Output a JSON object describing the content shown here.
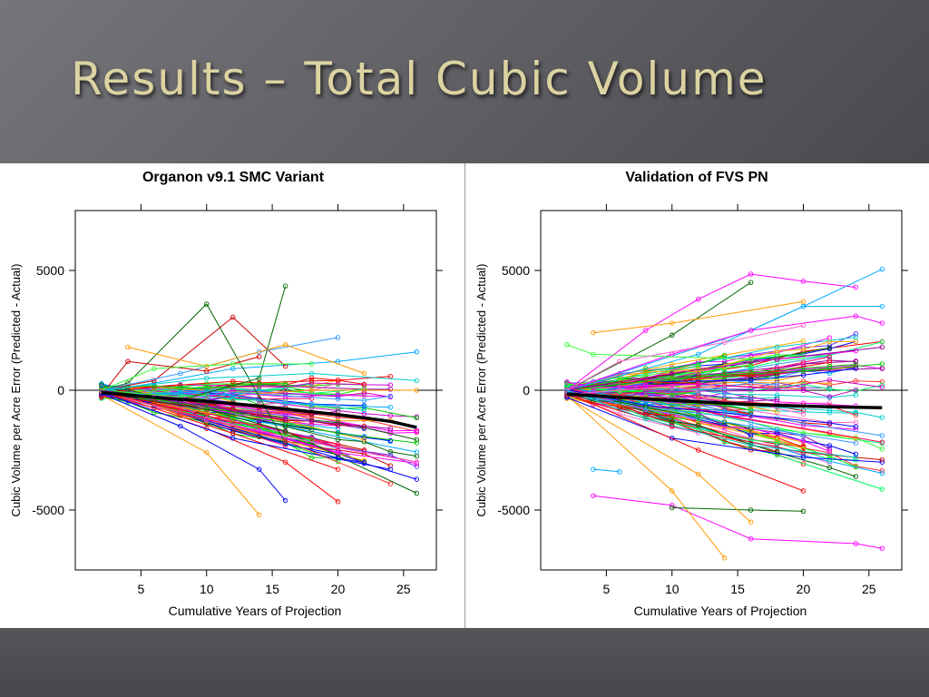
{
  "slide": {
    "title": "Results – Total Cubic Volume"
  },
  "colors": {
    "background": "#5e5e63",
    "title": "#dcd3a2",
    "mean_line": "#000000",
    "palette": [
      "#ff0000",
      "#00cc00",
      "#0000ff",
      "#ff00ff",
      "#00aaff",
      "#ff9900",
      "#006600",
      "#cc0000",
      "#33ff33",
      "#ff66cc",
      "#3399ff",
      "#990099",
      "#ffaa00",
      "#00cccc",
      "#ff3333",
      "#00ff66",
      "#6633ff",
      "#ff0066",
      "#00ff00",
      "#cc00cc"
    ]
  },
  "chart_data": [
    {
      "type": "line",
      "title": "Organon v9.1 SMC Variant",
      "xlabel": "Cumulative Years of Projection",
      "ylabel": "Cubic Volume per Acre Error (Predicted - Actual)",
      "xlim": [
        0,
        27.5
      ],
      "ylim": [
        -7500,
        7500
      ],
      "xticks": [
        5,
        10,
        15,
        20,
        25
      ],
      "yticks": [
        -5000,
        0,
        5000
      ],
      "reference_line_y": 0,
      "series_count": 130,
      "mean_trend": {
        "x": [
          2,
          4,
          6,
          8,
          10,
          12,
          14,
          16,
          18,
          20,
          22,
          24,
          26
        ],
        "y": [
          -100,
          -200,
          -300,
          -380,
          -460,
          -560,
          -660,
          -780,
          -900,
          -1020,
          -1150,
          -1300,
          -1550
        ]
      },
      "series": [
        {
          "color": "#ff00ff",
          "x": [
            2,
            8,
            14,
            20,
            26
          ],
          "y": [
            -100,
            -900,
            -1700,
            -2600,
            -3050
          ]
        },
        {
          "color": "#00aaff",
          "x": [
            2,
            6,
            12,
            20,
            26
          ],
          "y": [
            -50,
            300,
            900,
            1200,
            1600
          ]
        },
        {
          "color": "#006600",
          "x": [
            2,
            10,
            16,
            26
          ],
          "y": [
            -100,
            -800,
            -1700,
            -4300
          ]
        },
        {
          "color": "#ff0000",
          "x": [
            2,
            10,
            16,
            20
          ],
          "y": [
            -100,
            -1600,
            -3000,
            -4650
          ]
        },
        {
          "color": "#ff9900",
          "x": [
            2,
            10,
            14
          ],
          "y": [
            -200,
            -2600,
            -5200
          ]
        },
        {
          "color": "#006600",
          "x": [
            2,
            4,
            10,
            16
          ],
          "y": [
            0,
            300,
            3600,
            -2200
          ]
        },
        {
          "color": "#cc0000",
          "x": [
            2,
            6,
            12,
            16
          ],
          "y": [
            0,
            400,
            3050,
            1000
          ]
        },
        {
          "color": "#006600",
          "x": [
            2,
            8,
            14,
            16
          ],
          "y": [
            0,
            -400,
            500,
            4350
          ]
        },
        {
          "color": "#3399ff",
          "x": [
            2,
            8,
            14,
            20
          ],
          "y": [
            0,
            700,
            1600,
            2200
          ]
        },
        {
          "color": "#ff9900",
          "x": [
            4,
            10,
            16,
            22
          ],
          "y": [
            1800,
            1000,
            1900,
            700
          ]
        },
        {
          "color": "#cc0000",
          "x": [
            2,
            4,
            10,
            14
          ],
          "y": [
            -200,
            1200,
            800,
            1400
          ]
        },
        {
          "color": "#0000ff",
          "x": [
            2,
            8,
            14,
            16
          ],
          "y": [
            -150,
            -1500,
            -3300,
            -4600
          ]
        },
        {
          "color": "#ff66cc",
          "x": [
            2,
            10,
            20,
            26
          ],
          "y": [
            -100,
            -1200,
            -2400,
            -3000
          ]
        },
        {
          "color": "#00cc00",
          "x": [
            2,
            10,
            20,
            26
          ],
          "y": [
            -50,
            -700,
            -1800,
            -2200
          ]
        },
        {
          "color": "#ff0000",
          "x": [
            2,
            12,
            20
          ],
          "y": [
            -50,
            -1800,
            -3300
          ]
        },
        {
          "color": "#0000ff",
          "x": [
            2,
            12,
            24
          ],
          "y": [
            -100,
            -2000,
            -3300
          ]
        },
        {
          "color": "#990099",
          "x": [
            2,
            8,
            16,
            24
          ],
          "y": [
            0,
            -500,
            -1200,
            -1600
          ]
        },
        {
          "color": "#00cccc",
          "x": [
            2,
            10,
            18,
            26
          ],
          "y": [
            0,
            500,
            700,
            400
          ]
        },
        {
          "color": "#33ff33",
          "x": [
            2,
            6,
            12,
            18
          ],
          "y": [
            0,
            900,
            1100,
            1100
          ]
        },
        {
          "color": "#ff3333",
          "x": [
            2,
            8,
            16,
            24
          ],
          "y": [
            -50,
            -900,
            -2100,
            -3900
          ]
        }
      ]
    },
    {
      "type": "line",
      "title": "Validation of FVS PN",
      "xlabel": "Cumulative Years of Projection",
      "ylabel": "Cubic Volume per Acre Error (Predicted - Actual)",
      "xlim": [
        0,
        27.5
      ],
      "ylim": [
        -7500,
        7500
      ],
      "xticks": [
        5,
        10,
        15,
        20,
        25
      ],
      "yticks": [
        -5000,
        0,
        5000
      ],
      "reference_line_y": 0,
      "series_count": 150,
      "mean_trend": {
        "x": [
          2,
          4,
          6,
          8,
          10,
          12,
          14,
          16,
          18,
          20,
          22,
          24,
          26
        ],
        "y": [
          -150,
          -230,
          -300,
          -360,
          -420,
          -480,
          -540,
          -590,
          -630,
          -660,
          -690,
          -710,
          -730
        ]
      },
      "series": [
        {
          "color": "#ff00ff",
          "x": [
            2,
            8,
            12,
            16,
            20,
            24
          ],
          "y": [
            0,
            2500,
            3800,
            4850,
            4550,
            4300
          ]
        },
        {
          "color": "#00aaff",
          "x": [
            2,
            12,
            20,
            26
          ],
          "y": [
            0,
            1500,
            3500,
            5050
          ]
        },
        {
          "color": "#00aaff",
          "x": [
            2,
            16,
            20,
            26
          ],
          "y": [
            0,
            2500,
            3500,
            3500
          ]
        },
        {
          "color": "#ff00ff",
          "x": [
            2,
            10,
            16,
            24,
            26
          ],
          "y": [
            0,
            1500,
            2500,
            3100,
            2800
          ]
        },
        {
          "color": "#006600",
          "x": [
            2,
            10,
            16
          ],
          "y": [
            0,
            2300,
            4500
          ]
        },
        {
          "color": "#ff9900",
          "x": [
            4,
            10,
            20
          ],
          "y": [
            2400,
            2800,
            3700
          ]
        },
        {
          "color": "#33ff33",
          "x": [
            2,
            4,
            16
          ],
          "y": [
            1900,
            1500,
            1300
          ]
        },
        {
          "color": "#ff00ff",
          "x": [
            4,
            10,
            16,
            24,
            26
          ],
          "y": [
            -4400,
            -4800,
            -6200,
            -6400,
            -6600
          ]
        },
        {
          "color": "#ff9900",
          "x": [
            2,
            10,
            14
          ],
          "y": [
            -200,
            -4200,
            -7000
          ]
        },
        {
          "color": "#006600",
          "x": [
            10,
            16,
            20
          ],
          "y": [
            -4900,
            -5000,
            -5050
          ]
        },
        {
          "color": "#00aaff",
          "x": [
            4,
            6
          ],
          "y": [
            -3300,
            -3400
          ]
        },
        {
          "color": "#ff9900",
          "x": [
            2,
            12,
            16
          ],
          "y": [
            -300,
            -3500,
            -5500
          ]
        },
        {
          "color": "#0000ff",
          "x": [
            2,
            10,
            20,
            26
          ],
          "y": [
            -300,
            -2000,
            -2800,
            -3000
          ]
        },
        {
          "color": "#cc0000",
          "x": [
            2,
            10,
            20,
            26
          ],
          "y": [
            -200,
            -1500,
            -2600,
            -2900
          ]
        },
        {
          "color": "#00cc00",
          "x": [
            2,
            10,
            20,
            26
          ],
          "y": [
            0,
            500,
            800,
            1100
          ]
        },
        {
          "color": "#ff0000",
          "x": [
            2,
            12,
            20
          ],
          "y": [
            -100,
            -2500,
            -4200
          ]
        },
        {
          "color": "#990099",
          "x": [
            2,
            10,
            18,
            26
          ],
          "y": [
            0,
            700,
            1300,
            1800
          ]
        },
        {
          "color": "#00cccc",
          "x": [
            2,
            8,
            16,
            24
          ],
          "y": [
            0,
            -1200,
            -2300,
            -2800
          ]
        },
        {
          "color": "#ff66cc",
          "x": [
            2,
            6,
            14,
            20
          ],
          "y": [
            0,
            1200,
            2000,
            2700
          ]
        },
        {
          "color": "#3399ff",
          "x": [
            2,
            8,
            16,
            24
          ],
          "y": [
            -50,
            -800,
            -1500,
            -2200
          ]
        }
      ]
    }
  ]
}
